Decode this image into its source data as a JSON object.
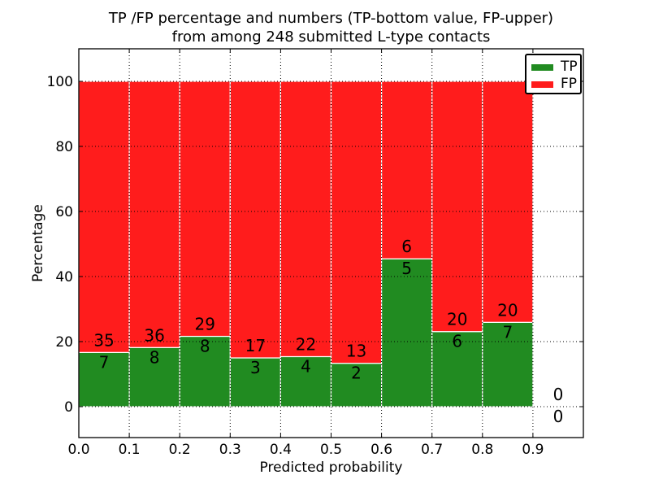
{
  "figure": {
    "title_lines": [
      "TP /FP percentage and numbers (TP-bottom value, FP-upper)",
      "from among 248 submitted L-type contacts"
    ]
  },
  "chart_data": {
    "type": "bar",
    "stacked": true,
    "normalized_to_bin_percent": true,
    "title": "TP /FP percentage and numbers (TP-bottom value, FP-upper)\nfrom among 248 submitted L-type contacts",
    "xlabel": "Predicted probability",
    "ylabel": "Percentage",
    "total_submitted": 248,
    "bin_left_edges": [
      0.0,
      0.1,
      0.2,
      0.3,
      0.4,
      0.5,
      0.6,
      0.7,
      0.8,
      0.9
    ],
    "bin_width": 0.1,
    "series": [
      {
        "name": "TP",
        "color": "#218b21",
        "counts": [
          7,
          8,
          8,
          3,
          4,
          2,
          5,
          6,
          7,
          0
        ]
      },
      {
        "name": "FP",
        "color": "#ff1c1c",
        "counts": [
          35,
          36,
          29,
          17,
          22,
          13,
          6,
          20,
          20,
          0
        ]
      }
    ],
    "bar_label_rule": "FP count above green/red boundary, TP count below it",
    "xticks": [
      "0.0",
      "0.1",
      "0.2",
      "0.3",
      "0.4",
      "0.5",
      "0.6",
      "0.7",
      "0.8",
      "0.9"
    ],
    "yticks": [
      0,
      20,
      40,
      60,
      80,
      100
    ],
    "xlim": [
      0.0,
      1.0
    ],
    "ylim": [
      -9.5,
      110
    ],
    "grid": {
      "style": "dotted",
      "color": "#000000",
      "on": true,
      "drawn_above_bars": true
    },
    "bar_edge_color": "#ffffff",
    "axis_color": "#000000",
    "background_color": "#ffffff",
    "legend": {
      "position": "upper right",
      "entries": [
        {
          "label": "TP",
          "color": "#218b21"
        },
        {
          "label": "FP",
          "color": "#ff1c1c"
        }
      ]
    }
  }
}
